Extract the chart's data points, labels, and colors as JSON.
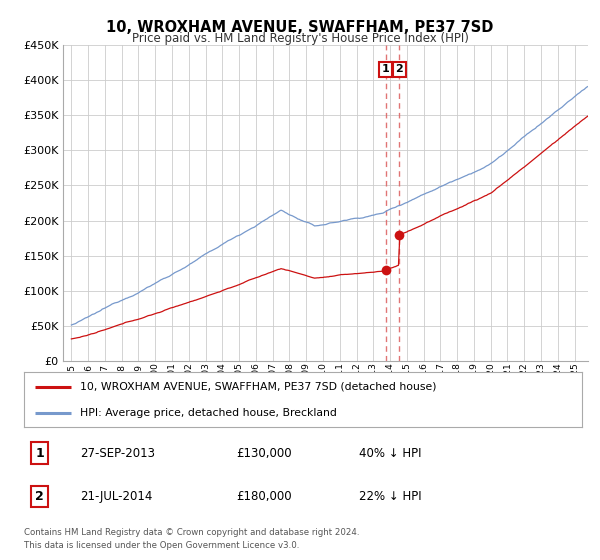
{
  "title": "10, WROXHAM AVENUE, SWAFFHAM, PE37 7SD",
  "subtitle": "Price paid vs. HM Land Registry's House Price Index (HPI)",
  "ylabel_ticks": [
    "£0",
    "£50K",
    "£100K",
    "£150K",
    "£200K",
    "£250K",
    "£300K",
    "£350K",
    "£400K",
    "£450K"
  ],
  "ylim": [
    0,
    450000
  ],
  "ytick_vals": [
    0,
    50000,
    100000,
    150000,
    200000,
    250000,
    300000,
    350000,
    400000,
    450000
  ],
  "hpi_color": "#7799cc",
  "price_color": "#cc1111",
  "vline_color": "#dd6666",
  "transaction1_date_num": 2013.74,
  "transaction1_price": 130000,
  "transaction2_date_num": 2014.55,
  "transaction2_price": 180000,
  "row1_date": "27-SEP-2013",
  "row1_price": "£130,000",
  "row1_pct": "40% ↓ HPI",
  "row2_date": "21-JUL-2014",
  "row2_price": "£180,000",
  "row2_pct": "22% ↓ HPI",
  "footer": "Contains HM Land Registry data © Crown copyright and database right 2024.\nThis data is licensed under the Open Government Licence v3.0.",
  "background_color": "#ffffff",
  "grid_color": "#cccccc"
}
